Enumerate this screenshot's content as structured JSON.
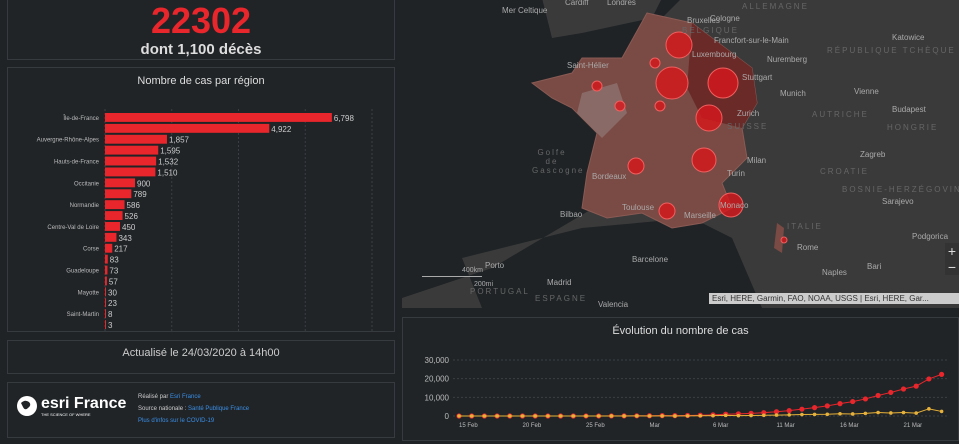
{
  "kpi": {
    "total": "22302",
    "deaths": "dont 1,100 décès"
  },
  "region_chart": {
    "title": "Nombre de cas par région"
  },
  "updated": "Actualisé le 24/03/2020 à 14h00",
  "footer": {
    "logo_text": "esri France",
    "logo_tagline": "THE SCIENCE OF WHERE",
    "made_by_label": "Réalisé par ",
    "made_by_link": "Esri France",
    "source_label": "Source nationale : ",
    "source_link": "Santé Publique France",
    "more_link": "Plus d'infos sur le COVID-19"
  },
  "map": {
    "labels": [
      "Cardiff",
      "Londres",
      "Mer Celtique",
      "Bruxelles",
      "Cologne",
      "BELGIQUE",
      "Francfort-sur-le-Main",
      "Luxembourg",
      "Nuremberg",
      "Saint-Hélier",
      "Stuttgart",
      "Munich",
      "Vienne",
      "Zurich",
      "SUISSE",
      "AUTRICHE",
      "Golfe de Gascogne",
      "Bordeaux",
      "Milan",
      "Turin",
      "Zagreb",
      "CROATIE",
      "Toulouse",
      "Monaco",
      "Marseille",
      "Bilbao",
      "ITALIE",
      "Rome",
      "Barcelone",
      "Naples",
      "Porto",
      "Madrid",
      "ESPAGNE",
      "Valencia",
      "ALLEMAGNE",
      "RÉPUBLIQUE TCHÈQUE",
      "Katowice",
      "Budapest",
      "HONGRIE",
      "BOSNIE-HERZÉGOVINE",
      "Sarajevo",
      "Podgorica",
      "Bari",
      "PORTUGAL"
    ],
    "scale": {
      "km": "400km",
      "mi": "200mi"
    },
    "attribution": "Esri, HERE, Garmin, FAO, NOAA, USGS | Esri, HERE, Gar...",
    "zoom_in": "+",
    "zoom_out": "−"
  },
  "chart_data": [
    {
      "type": "bar",
      "orientation": "horizontal",
      "title": "Nombre de cas par région",
      "categories": [
        "Île-de-France",
        "",
        "Auvergne-Rhône-Alpes",
        "",
        "Hauts-de-France",
        "",
        "Occitanie",
        "",
        "Normandie",
        "",
        "Centre-Val de Loire",
        "",
        "Corse",
        "",
        "Guadeloupe",
        "",
        "Mayotte",
        "",
        "Saint-Martin",
        ""
      ],
      "values": [
        6798,
        4922,
        1857,
        1595,
        1532,
        1510,
        900,
        789,
        586,
        526,
        450,
        343,
        217,
        83,
        73,
        57,
        30,
        23,
        8,
        3
      ],
      "value_labels": [
        "6,798",
        "4,922",
        "1,857",
        "1,595",
        "1,532",
        "1,510",
        "900",
        "789",
        "586",
        "526",
        "450",
        "343",
        "217",
        "83",
        "73",
        "57",
        "30",
        "23",
        "8",
        "3"
      ],
      "xlim": [
        0,
        8000
      ],
      "grid": true,
      "color": "#e8262b"
    },
    {
      "type": "line",
      "title": "Évolution du nombre de cas",
      "x": [
        "15 Feb",
        "16 Feb",
        "17 Feb",
        "18 Feb",
        "19 Feb",
        "20 Feb",
        "21 Feb",
        "22 Feb",
        "23 Feb",
        "24 Feb",
        "25 Feb",
        "26 Feb",
        "27 Feb",
        "28 Feb",
        "29 Feb",
        "1 Mar",
        "2 Mar",
        "3 Mar",
        "4 Mar",
        "5 Mar",
        "6 Mar",
        "7 Mar",
        "8 Mar",
        "9 Mar",
        "10 Mar",
        "11 Mar",
        "12 Mar",
        "13 Mar",
        "14 Mar",
        "15 Mar",
        "16 Mar",
        "17 Mar",
        "18 Mar",
        "19 Mar",
        "20 Mar",
        "21 Mar",
        "22 Mar",
        "23 Mar",
        "24 Mar"
      ],
      "xticks": [
        "15 Feb",
        "20 Feb",
        "25 Feb",
        "Mar",
        "6 Mar",
        "11 Mar",
        "16 Mar",
        "21 Mar"
      ],
      "yticks": [
        "0",
        "10,000",
        "20,000",
        "30,000"
      ],
      "ylim": [
        0,
        30000
      ],
      "grid": true,
      "series": [
        {
          "color": "#e8262b",
          "values": [
            12,
            12,
            12,
            12,
            12,
            12,
            12,
            12,
            12,
            12,
            14,
            18,
            38,
            57,
            100,
            130,
            191,
            212,
            285,
            423,
            613,
            949,
            1126,
            1412,
            1784,
            2281,
            2876,
            3661,
            4499,
            5423,
            6633,
            7730,
            9134,
            10995,
            12612,
            14459,
            16018,
            19856,
            22302
          ]
        },
        {
          "color": "#e8b23a",
          "values": [
            0,
            0,
            0,
            0,
            0,
            0,
            0,
            0,
            0,
            0,
            2,
            4,
            20,
            19,
            43,
            30,
            61,
            21,
            73,
            138,
            190,
            336,
            177,
            286,
            372,
            497,
            595,
            785,
            838,
            924,
            1210,
            1097,
            1404,
            1861,
            1617,
            1847,
            1559,
            3838,
            2446
          ]
        }
      ]
    }
  ]
}
